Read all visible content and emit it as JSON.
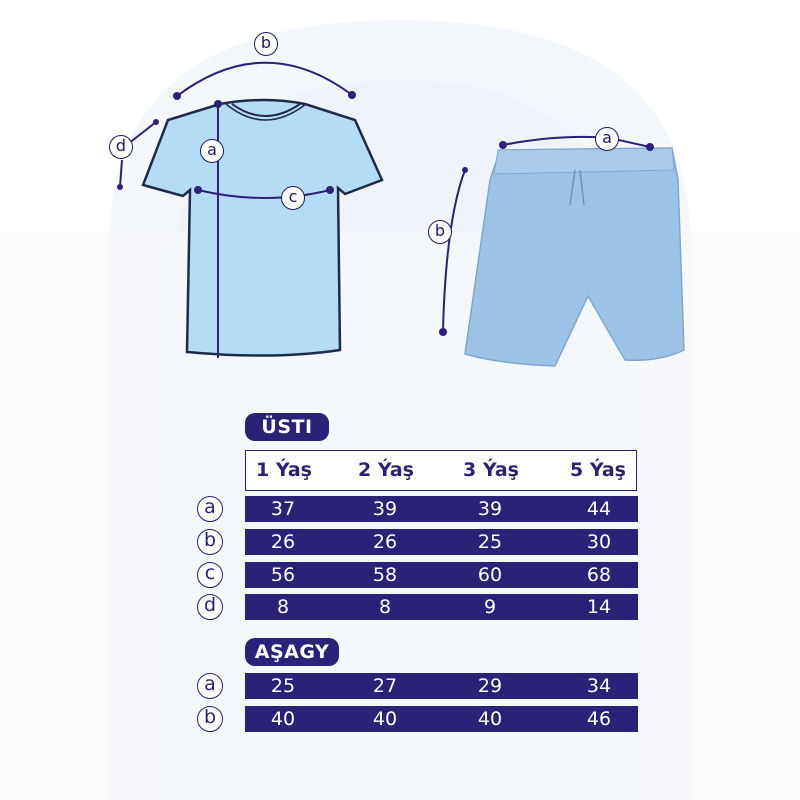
{
  "colors": {
    "navy": "#2b2178",
    "shirt": "#b5dcf6",
    "shorts": "#9cc3e6",
    "background": "#f3f6fb"
  },
  "diagram": {
    "shirt_labels": [
      "b",
      "a",
      "c",
      "d"
    ],
    "shorts_labels": [
      "a",
      "b"
    ]
  },
  "top": {
    "title": "ÜSTI",
    "headers": [
      "1 Ýaş",
      "2 Ýaş",
      "3 Ýaş",
      "5 Ýaş"
    ],
    "rows": [
      {
        "label": "a",
        "values": [
          "37",
          "39",
          "39",
          "44"
        ]
      },
      {
        "label": "b",
        "values": [
          "26",
          "26",
          "25",
          "30"
        ]
      },
      {
        "label": "c",
        "values": [
          "56",
          "58",
          "60",
          "68"
        ]
      },
      {
        "label": "d",
        "values": [
          "8",
          "8",
          "9",
          "14"
        ]
      }
    ]
  },
  "bottom": {
    "title": "AŞAGY",
    "rows": [
      {
        "label": "a",
        "values": [
          "25",
          "27",
          "29",
          "34"
        ]
      },
      {
        "label": "b",
        "values": [
          "40",
          "40",
          "40",
          "46"
        ]
      }
    ]
  }
}
